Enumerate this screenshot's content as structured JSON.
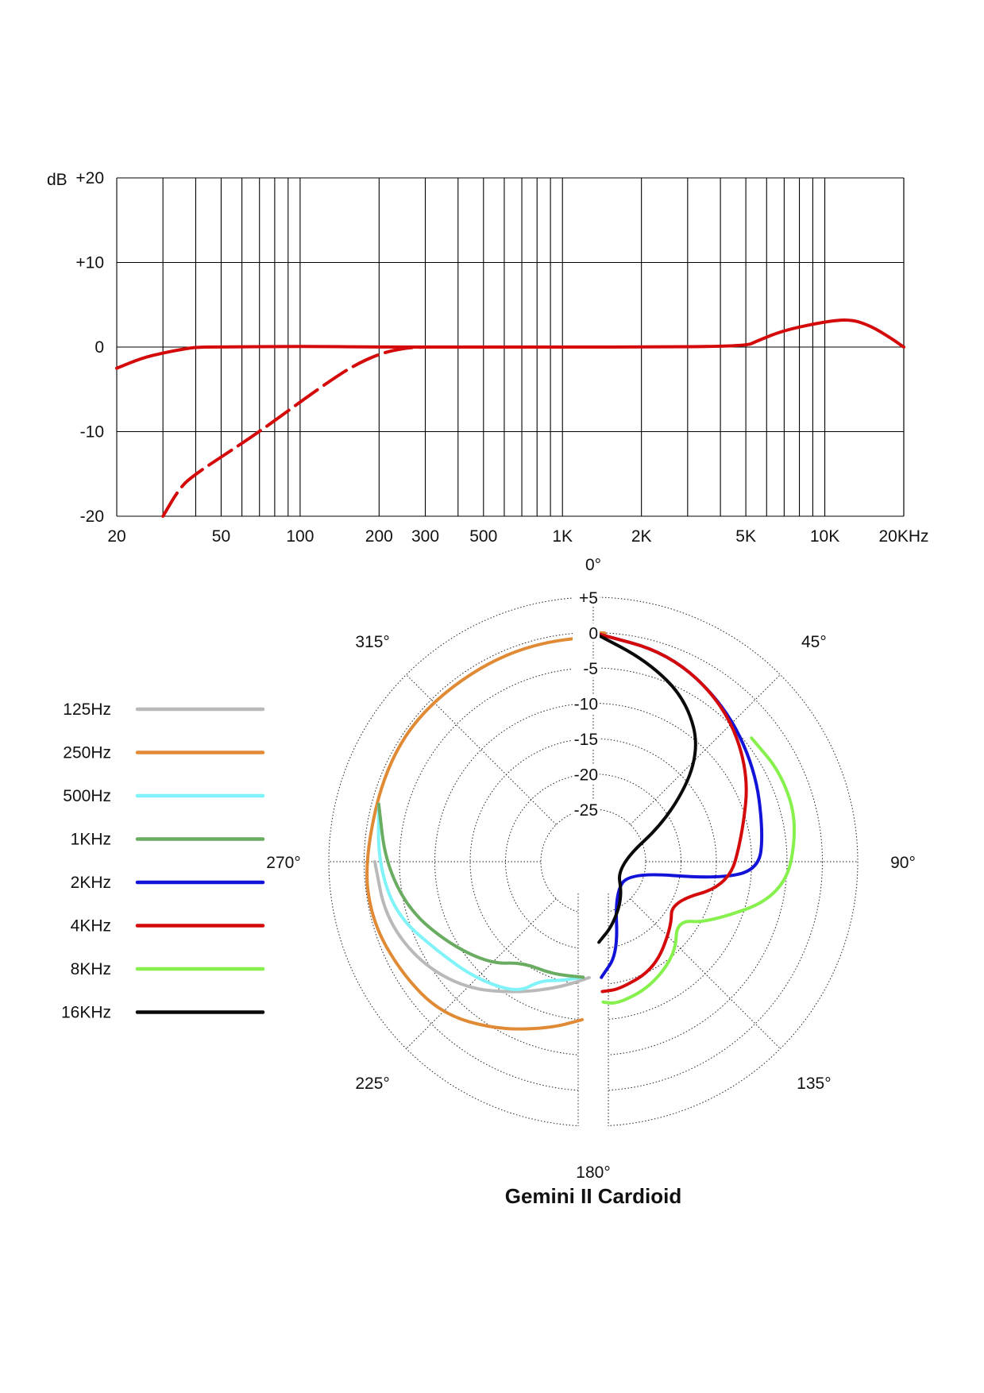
{
  "page": {
    "title": "Gemini II Cardioid"
  },
  "chart_data": [
    {
      "type": "line",
      "name": "frequency-response",
      "ylabel": "dB",
      "xscale": "log",
      "xlim": [
        20,
        20000
      ],
      "ylim": [
        -20,
        20
      ],
      "grid": true,
      "x_tick_values": [
        20,
        50,
        100,
        200,
        300,
        500,
        1000,
        2000,
        5000,
        10000,
        20000
      ],
      "x_tick_labels": [
        "20",
        "50",
        "100",
        "200",
        "300",
        "500",
        "1K",
        "2K",
        "5K",
        "10K",
        "20KHz"
      ],
      "y_tick_values": [
        20,
        10,
        0,
        -10,
        -20
      ],
      "y_tick_labels": [
        "+20",
        "+10",
        "0",
        "-10",
        "-20"
      ],
      "series": [
        {
          "style": "solid",
          "color": "#d40a0a",
          "x": [
            20,
            25,
            30,
            35,
            40,
            50,
            100,
            200,
            500,
            1000,
            2000,
            5000,
            5500,
            7000,
            10000,
            12500,
            15000,
            18000,
            20000
          ],
          "y": [
            -2.5,
            -1.3,
            -0.7,
            -0.3,
            0,
            0,
            0.1,
            0,
            0,
            0,
            0,
            0.1,
            0.7,
            2,
            3,
            3.3,
            2.5,
            1,
            0
          ]
        },
        {
          "style": "dashed",
          "color": "#d40a0a",
          "x": [
            30,
            35,
            40,
            50,
            70,
            100,
            130,
            160,
            200,
            250,
            300
          ],
          "y": [
            -20,
            -16.5,
            -15,
            -13,
            -10,
            -6.5,
            -4,
            -2.2,
            -0.8,
            -0.1,
            0
          ]
        }
      ]
    },
    {
      "type": "polar",
      "name": "polar-pattern",
      "title": "Gemini II Cardioid",
      "radial_labels": [
        "+5",
        "0",
        "-5",
        "-10",
        "-15",
        "-20",
        "-25"
      ],
      "angle_labels": [
        "0°",
        "45°",
        "90°",
        "135°",
        "180°",
        "225°",
        "270°",
        "315°"
      ],
      "series": [
        {
          "name": "125Hz",
          "color": "#b9b9b9",
          "points": [
            [
              270,
              -1.5
            ],
            [
              255,
              -2
            ],
            [
              240,
              -4
            ],
            [
              225,
              -7
            ],
            [
              210,
              -11
            ],
            [
              195,
              -14
            ],
            [
              182,
              -16
            ]
          ]
        },
        {
          "name": "250Hz",
          "color": "#e08a35",
          "points": [
            [
              0,
              0
            ],
            [
              5,
              0
            ],
            [
              340,
              0
            ],
            [
              315,
              0
            ],
            [
              295,
              0
            ],
            [
              270,
              0
            ],
            [
              255,
              0
            ],
            [
              240,
              -1
            ],
            [
              225,
              -2
            ],
            [
              210,
              -5
            ],
            [
              195,
              -8
            ],
            [
              184,
              -10
            ]
          ]
        },
        {
          "name": "500Hz",
          "color": "#7ff3f7",
          "points": [
            [
              285,
              -1
            ],
            [
              270,
              -2
            ],
            [
              255,
              -3.5
            ],
            [
              240,
              -7
            ],
            [
              225,
              -9
            ],
            [
              210,
              -11
            ],
            [
              204,
              -14
            ],
            [
              195,
              -15
            ],
            [
              185,
              -16
            ]
          ]
        },
        {
          "name": "1KHz",
          "color": "#6aac62",
          "points": [
            [
              285,
              -1
            ],
            [
              270,
              -3
            ],
            [
              255,
              -5.5
            ],
            [
              240,
              -9
            ],
            [
              225,
              -12
            ],
            [
              215,
              -15
            ],
            [
              200,
              -15.5
            ],
            [
              185,
              -16
            ]
          ]
        },
        {
          "name": "2KHz",
          "color": "#1212d8",
          "points": [
            [
              0,
              0
            ],
            [
              20,
              -1
            ],
            [
              40,
              -3.5
            ],
            [
              60,
              -6
            ],
            [
              80,
              -8
            ],
            [
              93,
              -9
            ],
            [
              98,
              -15
            ],
            [
              106,
              -27
            ],
            [
              145,
              -27
            ],
            [
              165,
              -19
            ],
            [
              176,
              -16
            ]
          ]
        },
        {
          "name": "4KHz",
          "color": "#d40a0a",
          "points": [
            [
              0,
              0
            ],
            [
              20,
              -1
            ],
            [
              40,
              -3.5
            ],
            [
              60,
              -7
            ],
            [
              80,
              -11
            ],
            [
              100,
              -13
            ],
            [
              117,
              -20
            ],
            [
              130,
              -18
            ],
            [
              150,
              -15
            ],
            [
              168,
              -14
            ],
            [
              176,
              -14
            ]
          ]
        },
        {
          "name": "8KHz",
          "color": "#86f04c",
          "points": [
            [
              52,
              -4
            ],
            [
              65,
              -3
            ],
            [
              80,
              -3
            ],
            [
              100,
              -5
            ],
            [
              118,
              -14
            ],
            [
              125,
              -18
            ],
            [
              138,
              -15
            ],
            [
              155,
              -13
            ],
            [
              170,
              -12
            ],
            [
              176,
              -12.5
            ]
          ]
        },
        {
          "name": "16KHz",
          "color": "#0a0a0a",
          "points": [
            [
              0,
              0
            ],
            [
              15,
              -3
            ],
            [
              30,
              -6
            ],
            [
              45,
              -11
            ],
            [
              60,
              -20
            ],
            [
              100,
              -29
            ],
            [
              140,
              -26
            ],
            [
              163,
              -23
            ],
            [
              176,
              -21
            ]
          ]
        }
      ]
    }
  ]
}
